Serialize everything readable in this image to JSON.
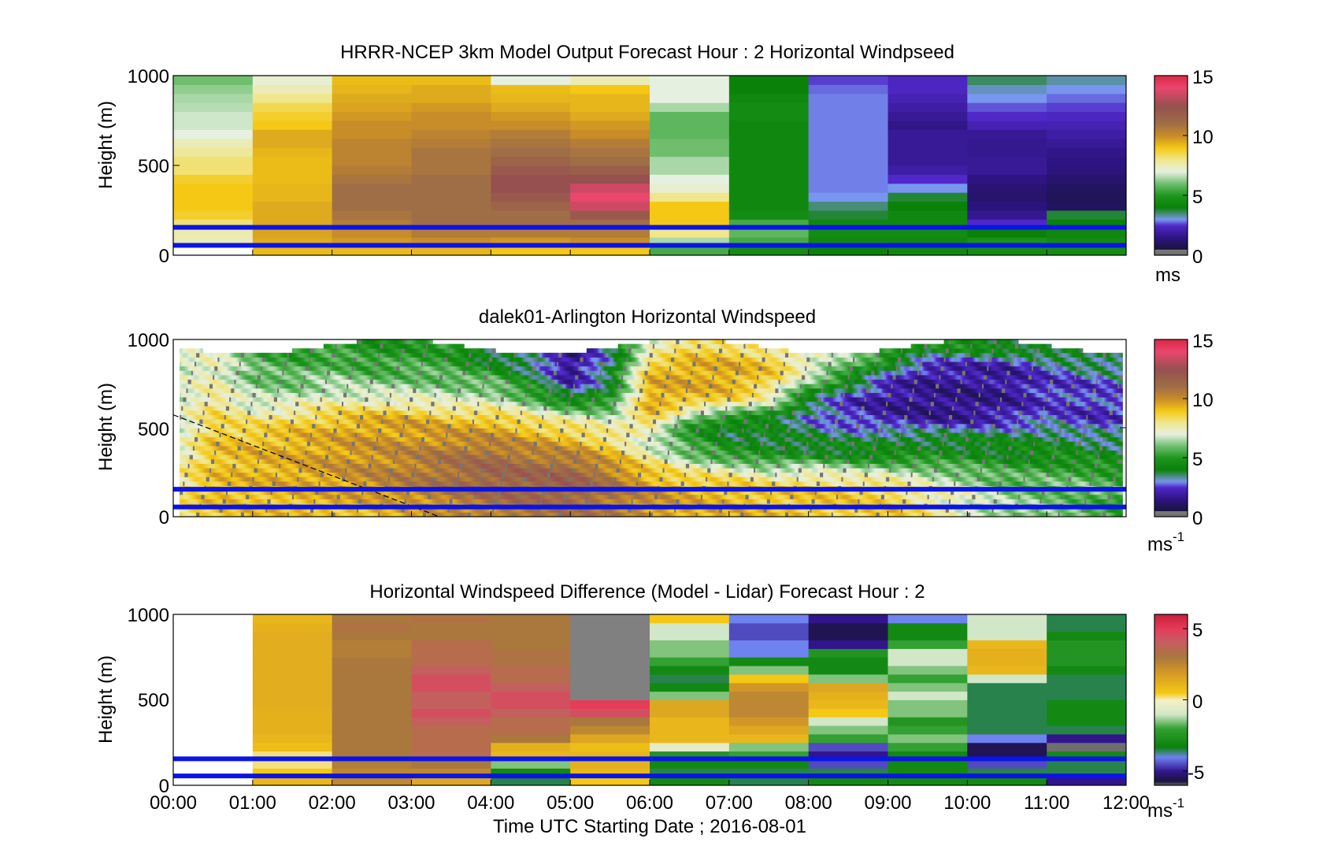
{
  "figure": {
    "xlabel": "Time UTC  Starting Date ; 2016-08-01",
    "x_ticks": [
      "00:00",
      "01:00",
      "02:00",
      "03:00",
      "04:00",
      "05:00",
      "06:00",
      "07:00",
      "08:00",
      "09:00",
      "10:00",
      "11:00",
      "12:00"
    ]
  },
  "chart_data": [
    {
      "type": "heatmap",
      "title": "HRRR-NCEP 3km Model Output   Forecast Hour : 2 Horizontal Windpseed",
      "ylabel": "Height (m)",
      "xlim": [
        0,
        12
      ],
      "ylim": [
        0,
        1000
      ],
      "y_ticks": [
        "0",
        "500",
        "1000"
      ],
      "colorbar": {
        "min": 0,
        "max": 15,
        "ticks": [
          "0",
          "5",
          "10",
          "15"
        ],
        "unit_base": "ms",
        "unit_exp": ""
      },
      "hours": [
        0,
        1,
        2,
        3,
        4,
        5,
        6,
        7,
        8,
        9,
        10,
        11
      ],
      "heights": [
        25,
        75,
        125,
        175,
        225,
        275,
        325,
        375,
        425,
        475,
        525,
        575,
        625,
        675,
        725,
        775,
        825,
        875,
        925,
        975
      ],
      "profiles_kmh": [
        [
          null,
          7.5,
          7.6,
          8.2,
          8.8,
          9.0,
          9.0,
          9.0,
          8.8,
          8.2,
          8.2,
          7.8,
          7.5,
          7.0,
          6.8,
          6.8,
          6.6,
          6.5,
          6.3,
          6.0
        ],
        [
          9.2,
          9.5,
          9.6,
          9.5,
          9.5,
          9.5,
          9.3,
          9.3,
          9.2,
          9.2,
          9.2,
          9.3,
          9.5,
          9.5,
          9.0,
          8.8,
          8.5,
          8.0,
          7.5,
          7.2
        ],
        [
          9.2,
          9.8,
          10.0,
          10.5,
          10.8,
          11.0,
          11.0,
          11.0,
          10.8,
          10.5,
          10.3,
          10.3,
          10.3,
          10.0,
          10.0,
          9.8,
          9.6,
          9.5,
          9.3,
          9.2
        ],
        [
          9.3,
          10.0,
          10.5,
          11.0,
          11.0,
          11.0,
          11.0,
          11.0,
          11.0,
          10.8,
          10.8,
          10.8,
          10.5,
          10.3,
          10.0,
          10.0,
          9.8,
          9.5,
          9.5,
          9.2
        ],
        [
          9.0,
          9.8,
          10.5,
          11.0,
          11.0,
          11.5,
          12.0,
          12.5,
          12.5,
          12.0,
          11.5,
          11.0,
          10.8,
          10.5,
          10.0,
          9.8,
          9.5,
          9.3,
          9.2,
          7.0
        ],
        [
          9.0,
          10.0,
          10.5,
          11.0,
          12.0,
          13.5,
          14.0,
          13.5,
          12.5,
          11.8,
          11.0,
          10.8,
          10.5,
          10.0,
          9.8,
          9.5,
          9.3,
          9.3,
          9.0,
          7.5
        ],
        [
          5.5,
          6.5,
          8.0,
          9.0,
          9.0,
          9.0,
          8.0,
          7.2,
          7.0,
          6.5,
          6.5,
          6.0,
          6.0,
          5.8,
          5.8,
          5.8,
          6.5,
          7.0,
          7.0,
          7.0
        ],
        [
          4.5,
          5.5,
          5.8,
          5.5,
          4.5,
          4.3,
          4.3,
          4.3,
          4.3,
          4.3,
          4.3,
          4.3,
          4.3,
          4.3,
          4.3,
          4.5,
          4.5,
          4.3,
          4.0,
          4.0
        ],
        [
          4.0,
          4.3,
          4.5,
          4.3,
          3.8,
          3.5,
          3.0,
          2.9,
          2.9,
          2.9,
          2.9,
          2.9,
          2.9,
          2.9,
          2.9,
          2.9,
          2.9,
          2.9,
          2.8,
          2.6
        ],
        [
          4.3,
          4.3,
          4.5,
          4.3,
          4.3,
          4.0,
          3.8,
          3.0,
          2.5,
          2.0,
          1.8,
          1.8,
          1.8,
          1.8,
          1.6,
          1.8,
          2.0,
          2.2,
          2.4,
          2.4
        ],
        [
          4.5,
          4.8,
          4.0,
          2.5,
          1.7,
          1.4,
          1.2,
          1.3,
          1.5,
          1.8,
          1.8,
          1.7,
          1.7,
          1.8,
          2.2,
          2.5,
          2.7,
          3.0,
          3.2,
          3.6
        ],
        [
          4.5,
          4.5,
          4.3,
          4.0,
          3.8,
          1.0,
          0.9,
          1.0,
          1.2,
          1.4,
          1.5,
          1.6,
          1.8,
          2.0,
          2.2,
          2.4,
          2.6,
          2.8,
          3.0,
          3.3
        ]
      ],
      "reference_lines_m": [
        55,
        155
      ]
    },
    {
      "type": "heatmap",
      "title": "dalek01-Arlington  Horizontal Windspeed",
      "ylabel": "Height (m)",
      "xlim": [
        0,
        12
      ],
      "ylim": [
        0,
        1000
      ],
      "y_ticks": [
        "0",
        "500",
        "1000"
      ],
      "colorbar": {
        "min": 0,
        "max": 15,
        "ticks": [
          "0",
          "5",
          "10",
          "15"
        ],
        "unit_base": "ms",
        "unit_exp": "-1"
      },
      "keypoints_hours": [
        0.1,
        0.5,
        1.0,
        1.5,
        2.0,
        2.5,
        3.0,
        3.5,
        4.0,
        4.5,
        5.0,
        5.5,
        6.0,
        6.5,
        7.0,
        7.5,
        8.0,
        8.5,
        9.0,
        9.5,
        10.0,
        10.5,
        11.0,
        11.5,
        12.0
      ],
      "profile_heights_m": [
        50,
        150,
        250,
        350,
        450,
        550,
        650,
        750,
        850,
        950
      ],
      "profiles_kmh": [
        [
          8.5,
          8.0,
          8.0,
          7.5,
          7.0,
          7.0,
          7.0,
          7.0,
          7.0,
          6.8
        ],
        [
          9.0,
          9.2,
          9.0,
          9.0,
          9.0,
          8.5,
          8.2,
          7.5,
          7.5,
          7.0
        ],
        [
          9.0,
          9.2,
          9.3,
          9.3,
          9.0,
          8.0,
          6.8,
          6.2,
          5.8,
          5.5
        ],
        [
          9.0,
          9.5,
          9.5,
          9.5,
          9.3,
          8.5,
          7.0,
          6.0,
          5.5,
          5.0
        ],
        [
          9.2,
          9.5,
          9.8,
          9.8,
          9.5,
          9.0,
          7.5,
          6.5,
          5.8,
          5.2
        ],
        [
          9.3,
          10.0,
          10.2,
          10.0,
          9.8,
          9.5,
          7.5,
          6.2,
          5.3,
          4.8
        ],
        [
          9.5,
          10.5,
          10.5,
          10.3,
          9.8,
          9.5,
          7.5,
          6.2,
          5.5,
          5.0
        ],
        [
          10.0,
          11.0,
          11.0,
          10.8,
          10.0,
          9.0,
          7.0,
          6.0,
          5.3,
          5.0
        ],
        [
          10.5,
          11.5,
          11.5,
          11.0,
          10.0,
          9.0,
          7.0,
          6.0,
          4.5,
          3.2
        ],
        [
          11.0,
          11.5,
          11.5,
          10.5,
          9.5,
          8.2,
          6.0,
          4.5,
          3.5,
          3.0
        ],
        [
          11.0,
          11.8,
          11.5,
          10.3,
          9.0,
          7.5,
          4.5,
          2.0,
          1.5,
          1.5
        ],
        [
          10.5,
          11.0,
          10.5,
          9.3,
          8.0,
          7.0,
          5.0,
          4.0,
          3.5,
          3.5
        ],
        [
          10.0,
          10.0,
          9.0,
          7.5,
          6.5,
          9.0,
          9.5,
          9.5,
          9.0,
          7.0
        ],
        [
          9.5,
          9.3,
          8.0,
          6.0,
          5.0,
          5.5,
          9.0,
          9.5,
          9.5,
          8.5
        ],
        [
          9.3,
          9.2,
          7.8,
          5.0,
          4.0,
          4.3,
          8.5,
          9.5,
          9.5,
          8.5
        ],
        [
          9.0,
          9.0,
          7.0,
          4.5,
          4.0,
          4.3,
          7.0,
          8.5,
          9.0,
          8.0
        ],
        [
          9.0,
          8.8,
          7.5,
          4.5,
          3.8,
          3.0,
          3.5,
          6.0,
          7.5,
          7.0
        ],
        [
          8.8,
          8.8,
          7.0,
          4.3,
          3.5,
          2.5,
          2.2,
          4.0,
          5.8,
          6.5
        ],
        [
          9.0,
          8.5,
          7.0,
          4.3,
          4.0,
          2.0,
          1.8,
          2.0,
          4.0,
          5.5
        ],
        [
          8.0,
          7.5,
          6.5,
          4.5,
          4.0,
          1.8,
          1.5,
          1.8,
          2.0,
          4.5
        ],
        [
          7.0,
          7.0,
          6.0,
          4.5,
          4.0,
          1.8,
          1.5,
          1.8,
          2.0,
          4.5
        ],
        [
          6.5,
          6.0,
          5.5,
          4.3,
          4.0,
          2.2,
          1.8,
          1.8,
          2.0,
          4.3
        ],
        [
          6.0,
          6.0,
          5.5,
          4.5,
          4.0,
          2.8,
          2.5,
          2.3,
          2.8,
          4.5
        ],
        [
          5.5,
          6.0,
          5.5,
          4.3,
          3.5,
          2.2,
          2.5,
          2.5,
          3.5,
          4.5
        ],
        [
          5.0,
          5.5,
          5.0,
          4.0,
          3.5,
          2.5,
          2.5,
          3.0,
          3.5,
          4.0
        ]
      ],
      "diagonal_line": {
        "x": [
          0,
          3.35
        ],
        "y": [
          575,
          0
        ]
      },
      "reference_lines_m": [
        55,
        155
      ]
    },
    {
      "type": "heatmap",
      "title": "Horizontal Windspeed Difference (Model - Lidar) Forecast Hour : 2",
      "ylabel": "Height (m)",
      "xlim": [
        0,
        12
      ],
      "ylim": [
        0,
        1000
      ],
      "y_ticks": [
        "0",
        "500",
        "1000"
      ],
      "colorbar": {
        "min": -6,
        "max": 6,
        "ticks": [
          "-5",
          "0",
          "5"
        ],
        "unit_base": "ms",
        "unit_exp": "-1"
      },
      "hours": [
        0,
        1,
        2,
        3,
        4,
        5,
        6,
        7,
        8,
        9,
        10,
        11
      ],
      "heights": [
        25,
        75,
        125,
        175,
        225,
        275,
        325,
        375,
        425,
        475,
        525,
        575,
        625,
        675,
        725,
        775,
        825,
        875,
        925,
        975
      ],
      "profiles_diff": [
        [
          null,
          null,
          null,
          null,
          null,
          null,
          null,
          null,
          null,
          null,
          null,
          null,
          null,
          null,
          null,
          null,
          null,
          null,
          null,
          null
        ],
        [
          1.0,
          0.5,
          0.2,
          0.2,
          0.8,
          1.0,
          1.2,
          1.2,
          1.2,
          1.3,
          1.3,
          1.3,
          1.3,
          1.3,
          1.3,
          1.3,
          1.3,
          1.3,
          1.2,
          1.0
        ],
        [
          2.5,
          2.5,
          2.8,
          3.0,
          3.0,
          3.0,
          3.0,
          3.0,
          3.0,
          3.0,
          3.0,
          3.0,
          3.0,
          3.0,
          3.0,
          2.8,
          2.8,
          3.0,
          3.2,
          3.0
        ],
        [
          1.5,
          2.5,
          3.0,
          3.5,
          3.5,
          3.5,
          3.5,
          4.0,
          4.5,
          4.0,
          4.0,
          4.5,
          4.5,
          4.0,
          3.5,
          3.5,
          3.5,
          3.0,
          3.0,
          3.2
        ],
        [
          -3.5,
          -3.0,
          -1.5,
          1.0,
          1.2,
          3.0,
          3.5,
          3.5,
          4.0,
          4.5,
          4.5,
          4.0,
          3.5,
          3.5,
          3.2,
          3.2,
          3.0,
          3.0,
          3.0,
          3.0
        ],
        [
          0.5,
          1.0,
          1.2,
          1.0,
          0.8,
          1.5,
          2.5,
          3.0,
          4.5,
          5.0,
          null,
          null,
          null,
          null,
          null,
          null,
          null,
          null,
          null,
          null
        ],
        [
          -3.0,
          -3.5,
          -3.0,
          -2.5,
          -0.5,
          1.0,
          1.0,
          1.0,
          1.5,
          1.5,
          -1.5,
          -3.0,
          -3.5,
          -3.0,
          -2.0,
          -1.5,
          -1.5,
          -1.0,
          -1.0,
          0.5
        ],
        [
          -3.5,
          -3.5,
          -3.0,
          -2.0,
          -1.5,
          1.0,
          1.5,
          2.0,
          2.5,
          2.5,
          2.5,
          2.0,
          0.5,
          -1.5,
          -3.0,
          -4.0,
          -4.0,
          -4.5,
          -4.5,
          -4.0
        ],
        [
          -3.0,
          -3.5,
          -4.5,
          -5.0,
          -4.5,
          -2.0,
          -1.5,
          -1.0,
          0.5,
          1.0,
          1.2,
          1.5,
          -1.5,
          -3.0,
          -3.0,
          -2.5,
          -5.0,
          -5.5,
          -5.5,
          -5.0
        ],
        [
          -3.0,
          -3.0,
          -3.0,
          -3.0,
          -2.0,
          -1.5,
          -2.0,
          -2.5,
          -1.5,
          -1.5,
          -1.0,
          -1.5,
          -2.0,
          -1.5,
          -1.0,
          -1.0,
          -2.0,
          -3.0,
          -3.0,
          -4.0
        ],
        [
          -3.0,
          -3.5,
          -4.5,
          -5.5,
          -5.5,
          -4.0,
          -3.5,
          -3.5,
          -3.5,
          -3.5,
          -3.5,
          -3.5,
          -1.0,
          1.0,
          1.2,
          1.2,
          1.0,
          -1.0,
          -1.0,
          -1.0
        ],
        [
          -5.0,
          -3.5,
          -3.5,
          -3.0,
          -6.0,
          -5.0,
          -3.5,
          -3.0,
          -3.0,
          -3.0,
          -3.5,
          -3.5,
          -3.5,
          -3.0,
          -2.5,
          -2.5,
          -2.5,
          -3.0,
          -3.5,
          -3.5
        ]
      ],
      "reference_lines_m": [
        55,
        155
      ]
    }
  ]
}
